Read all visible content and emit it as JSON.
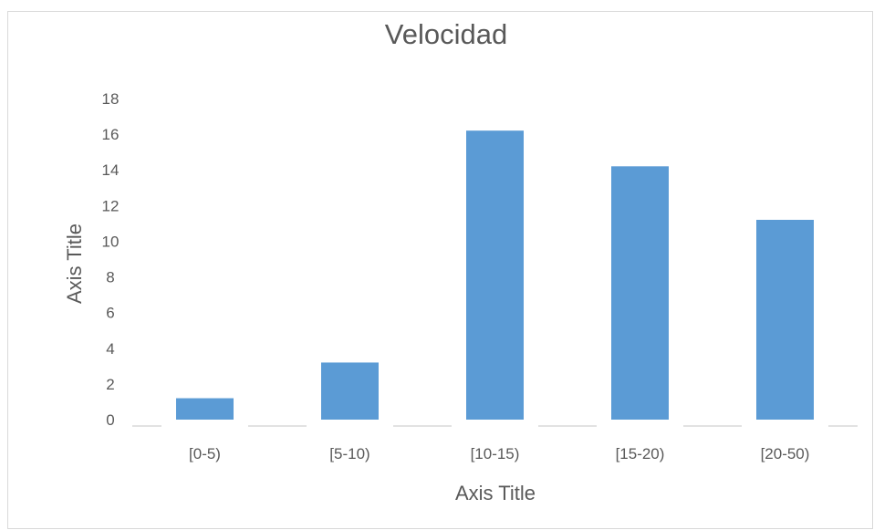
{
  "chart_data": {
    "type": "bar",
    "title": "Velocidad",
    "xlabel": "Axis Title",
    "ylabel": "Axis Title",
    "categories": [
      "[0-5)",
      "[5-10)",
      "[10-15)",
      "[15-20)",
      "[20-50)"
    ],
    "values": [
      1.2,
      3.2,
      16.2,
      14.2,
      11.2
    ],
    "ylim": [
      0,
      18
    ],
    "yticks": [
      0,
      2,
      4,
      6,
      8,
      10,
      12,
      14,
      16,
      18
    ],
    "grid": false,
    "bar_color": "#5b9bd5",
    "axis_line_color": "#d9d9d9",
    "text_color": "#595959"
  }
}
